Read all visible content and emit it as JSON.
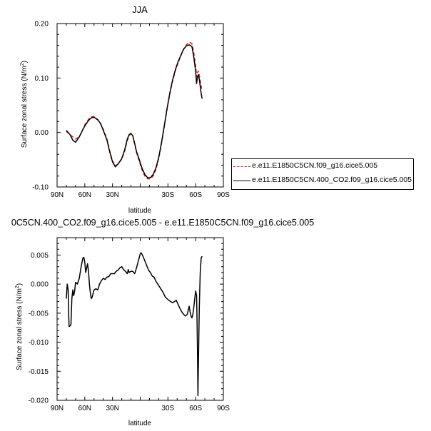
{
  "chart_data": [
    {
      "type": "line",
      "title": "JJA",
      "xlabel": "latitude",
      "ylabel": "Surface zonal stress (N/m²)",
      "xlim": [
        90,
        -90
      ],
      "ylim": [
        -0.1,
        0.2
      ],
      "xticks": [
        90,
        60,
        30,
        0,
        -30,
        -60,
        -90
      ],
      "xticklabels": [
        "90N",
        "60N",
        "30N",
        "",
        "30S",
        "60S",
        "90S"
      ],
      "yticks": [
        -0.1,
        0.0,
        0.1,
        0.2
      ],
      "yticklabels": [
        "-0.10",
        "0.00",
        "0.10",
        "0.20"
      ],
      "legend": "right",
      "series": [
        {
          "name": "e.e11.E1850C5CN.f09_g16.cice5.005",
          "color": "#e0201b",
          "style": "dashed",
          "points": [
            [
              80,
              0.002
            ],
            [
              76,
              -0.004
            ],
            [
              73,
              -0.008
            ],
            [
              70,
              -0.012
            ],
            [
              66,
              -0.008
            ],
            [
              63,
              0.002
            ],
            [
              60,
              0.014
            ],
            [
              56,
              0.024
            ],
            [
              53,
              0.029
            ],
            [
              50,
              0.029
            ],
            [
              46,
              0.024
            ],
            [
              43,
              0.016
            ],
            [
              40,
              0.006
            ],
            [
              36,
              -0.012
            ],
            [
              33,
              -0.034
            ],
            [
              30,
              -0.052
            ],
            [
              27,
              -0.061
            ],
            [
              24,
              -0.058
            ],
            [
              20,
              -0.049
            ],
            [
              17,
              -0.035
            ],
            [
              14,
              -0.015
            ],
            [
              12,
              -0.006
            ],
            [
              10,
              -0.001
            ],
            [
              8,
              -0.006
            ],
            [
              6,
              -0.021
            ],
            [
              4,
              -0.037
            ],
            [
              1,
              -0.053
            ],
            [
              -2,
              -0.069
            ],
            [
              -5,
              -0.08
            ],
            [
              -8,
              -0.085
            ],
            [
              -11,
              -0.085
            ],
            [
              -14,
              -0.08
            ],
            [
              -17,
              -0.068
            ],
            [
              -20,
              -0.048
            ],
            [
              -23,
              -0.02
            ],
            [
              -26,
              0.01
            ],
            [
              -29,
              0.042
            ],
            [
              -32,
              0.07
            ],
            [
              -35,
              0.094
            ],
            [
              -38,
              0.113
            ],
            [
              -41,
              0.128
            ],
            [
              -44,
              0.141
            ],
            [
              -47,
              0.153
            ],
            [
              -50,
              0.161
            ],
            [
              -53,
              0.166
            ],
            [
              -56,
              0.163
            ],
            [
              -58,
              0.146
            ],
            [
              -60,
              0.122
            ],
            [
              -61,
              0.102
            ],
            [
              -62,
              0.11
            ],
            [
              -63,
              0.113
            ],
            [
              -64,
              0.105
            ],
            [
              -65,
              0.095
            ],
            [
              -66,
              0.085
            ],
            [
              -67,
              0.077
            ]
          ]
        },
        {
          "name": "e.e11.E1850C5CN.400_CO2.f09_g16.cice5.005",
          "color": "#000000",
          "style": "solid",
          "points": [
            [
              80,
              0.004
            ],
            [
              76,
              -0.004
            ],
            [
              73,
              -0.014
            ],
            [
              70,
              -0.018
            ],
            [
              66,
              -0.008
            ],
            [
              63,
              0.002
            ],
            [
              60,
              0.012
            ],
            [
              56,
              0.022
            ],
            [
              53,
              0.027
            ],
            [
              50,
              0.028
            ],
            [
              46,
              0.023
            ],
            [
              43,
              0.017
            ],
            [
              40,
              0.004
            ],
            [
              36,
              -0.014
            ],
            [
              33,
              -0.036
            ],
            [
              30,
              -0.054
            ],
            [
              27,
              -0.063
            ],
            [
              24,
              -0.058
            ],
            [
              20,
              -0.048
            ],
            [
              17,
              -0.033
            ],
            [
              14,
              -0.012
            ],
            [
              12,
              -0.004
            ],
            [
              10,
              -0.002
            ],
            [
              8,
              -0.006
            ],
            [
              6,
              -0.02
            ],
            [
              4,
              -0.035
            ],
            [
              1,
              -0.05
            ],
            [
              -2,
              -0.066
            ],
            [
              -5,
              -0.077
            ],
            [
              -8,
              -0.083
            ],
            [
              -11,
              -0.083
            ],
            [
              -14,
              -0.077
            ],
            [
              -17,
              -0.065
            ],
            [
              -20,
              -0.046
            ],
            [
              -23,
              -0.019
            ],
            [
              -26,
              0.012
            ],
            [
              -29,
              0.043
            ],
            [
              -32,
              0.072
            ],
            [
              -35,
              0.096
            ],
            [
              -38,
              0.115
            ],
            [
              -41,
              0.13
            ],
            [
              -44,
              0.142
            ],
            [
              -47,
              0.153
            ],
            [
              -50,
              0.159
            ],
            [
              -53,
              0.161
            ],
            [
              -56,
              0.158
            ],
            [
              -58,
              0.138
            ],
            [
              -60,
              0.112
            ],
            [
              -61,
              0.09
            ],
            [
              -62,
              0.102
            ],
            [
              -63,
              0.106
            ],
            [
              -64,
              0.098
            ],
            [
              -65,
              0.085
            ],
            [
              -66,
              0.072
            ],
            [
              -67,
              0.062
            ]
          ]
        }
      ]
    },
    {
      "type": "line",
      "title": "0C5CN.400_CO2.f09_g16.cice5.005 - e.e11.E1850C5CN.f09_g16.cice5.005",
      "xlabel": "latitude",
      "ylabel": "Surface zonal stress (N/m²)",
      "xlim": [
        90,
        -90
      ],
      "ylim": [
        -0.02,
        0.008
      ],
      "xticks": [
        90,
        60,
        30,
        0,
        -30,
        -60,
        -90
      ],
      "xticklabels": [
        "90N",
        "60N",
        "30N",
        "",
        "30S",
        "60S",
        "90S"
      ],
      "yticks": [
        -0.02,
        -0.015,
        -0.01,
        -0.005,
        0.0,
        0.005
      ],
      "yticklabels": [
        "-0.020",
        "-0.015",
        "-0.010",
        "-0.005",
        "0.000",
        "0.005"
      ],
      "legend": "none",
      "series": [
        {
          "color": "#000000",
          "style": "solid",
          "points": [
            [
              80,
              -0.0025
            ],
            [
              79,
              0.0
            ],
            [
              78,
              -0.001
            ],
            [
              77.5,
              -0.005
            ],
            [
              77,
              -0.0073
            ],
            [
              76,
              -0.0072
            ],
            [
              75,
              -0.007
            ],
            [
              74,
              -0.0025
            ],
            [
              73,
              -0.001
            ],
            [
              72,
              -0.002
            ],
            [
              71,
              -0.0012
            ],
            [
              70,
              0.0003
            ],
            [
              68,
              0.0
            ],
            [
              66,
              0.001
            ],
            [
              64,
              0.003
            ],
            [
              62,
              0.0045
            ],
            [
              61,
              0.0046
            ],
            [
              60,
              0.0038
            ],
            [
              59,
              0.002
            ],
            [
              57,
              0.0035
            ],
            [
              56,
              0.0022
            ],
            [
              55,
              0.0
            ],
            [
              54,
              -0.0015
            ],
            [
              53,
              -0.0025
            ],
            [
              52,
              -0.0022
            ],
            [
              50,
              -0.001
            ],
            [
              48,
              -0.0008
            ],
            [
              46,
              -0.001
            ],
            [
              44,
              0.0
            ],
            [
              42,
              0.0006
            ],
            [
              40,
              0.001
            ],
            [
              38,
              0.0008
            ],
            [
              36,
              0.0012
            ],
            [
              34,
              0.0013
            ],
            [
              32,
              0.0018
            ],
            [
              28,
              0.0018
            ],
            [
              26,
              0.0022
            ],
            [
              24,
              0.0024
            ],
            [
              22,
              0.0028
            ],
            [
              20,
              0.003
            ],
            [
              18,
              0.0025
            ],
            [
              16,
              0.0022
            ],
            [
              14,
              0.0018
            ],
            [
              13,
              0.0025
            ],
            [
              12,
              0.002
            ],
            [
              10,
              0.0022
            ],
            [
              8,
              0.0022
            ],
            [
              6,
              0.0018
            ],
            [
              4,
              0.0028
            ],
            [
              2,
              0.004
            ],
            [
              0,
              0.0052
            ],
            [
              -1,
              0.0054
            ],
            [
              -3,
              0.0048
            ],
            [
              -5,
              0.004
            ],
            [
              -7,
              0.0032
            ],
            [
              -9,
              0.0024
            ],
            [
              -11,
              0.002
            ],
            [
              -13,
              0.0014
            ],
            [
              -15,
              0.0012
            ],
            [
              -17,
              0.0005
            ],
            [
              -19,
              0.0
            ],
            [
              -21,
              -0.0005
            ],
            [
              -23,
              -0.001
            ],
            [
              -25,
              -0.0015
            ],
            [
              -27,
              -0.0022
            ],
            [
              -29,
              -0.0025
            ],
            [
              -31,
              -0.0028
            ],
            [
              -33,
              -0.003
            ],
            [
              -35,
              -0.0032
            ],
            [
              -37,
              -0.003
            ],
            [
              -39,
              -0.0028
            ],
            [
              -41,
              -0.0035
            ],
            [
              -43,
              -0.0042
            ],
            [
              -45,
              -0.0048
            ],
            [
              -47,
              -0.0052
            ],
            [
              -49,
              -0.0055
            ],
            [
              -51,
              -0.0052
            ],
            [
              -52,
              -0.0045
            ],
            [
              -53,
              -0.0038
            ],
            [
              -54,
              -0.0048
            ],
            [
              -55,
              -0.0055
            ],
            [
              -56,
              -0.0058
            ],
            [
              -57,
              -0.0052
            ],
            [
              -58,
              -0.004
            ],
            [
              -59,
              -0.0025
            ],
            [
              -60,
              -0.0012
            ],
            [
              -61,
              -0.002
            ],
            [
              -61.5,
              -0.006
            ],
            [
              -62,
              -0.012
            ],
            [
              -62.5,
              -0.0192
            ],
            [
              -63,
              -0.014
            ],
            [
              -64,
              -0.004
            ],
            [
              -65,
              0.002
            ],
            [
              -66,
              0.0045
            ],
            [
              -67,
              0.0048
            ]
          ]
        }
      ]
    }
  ]
}
